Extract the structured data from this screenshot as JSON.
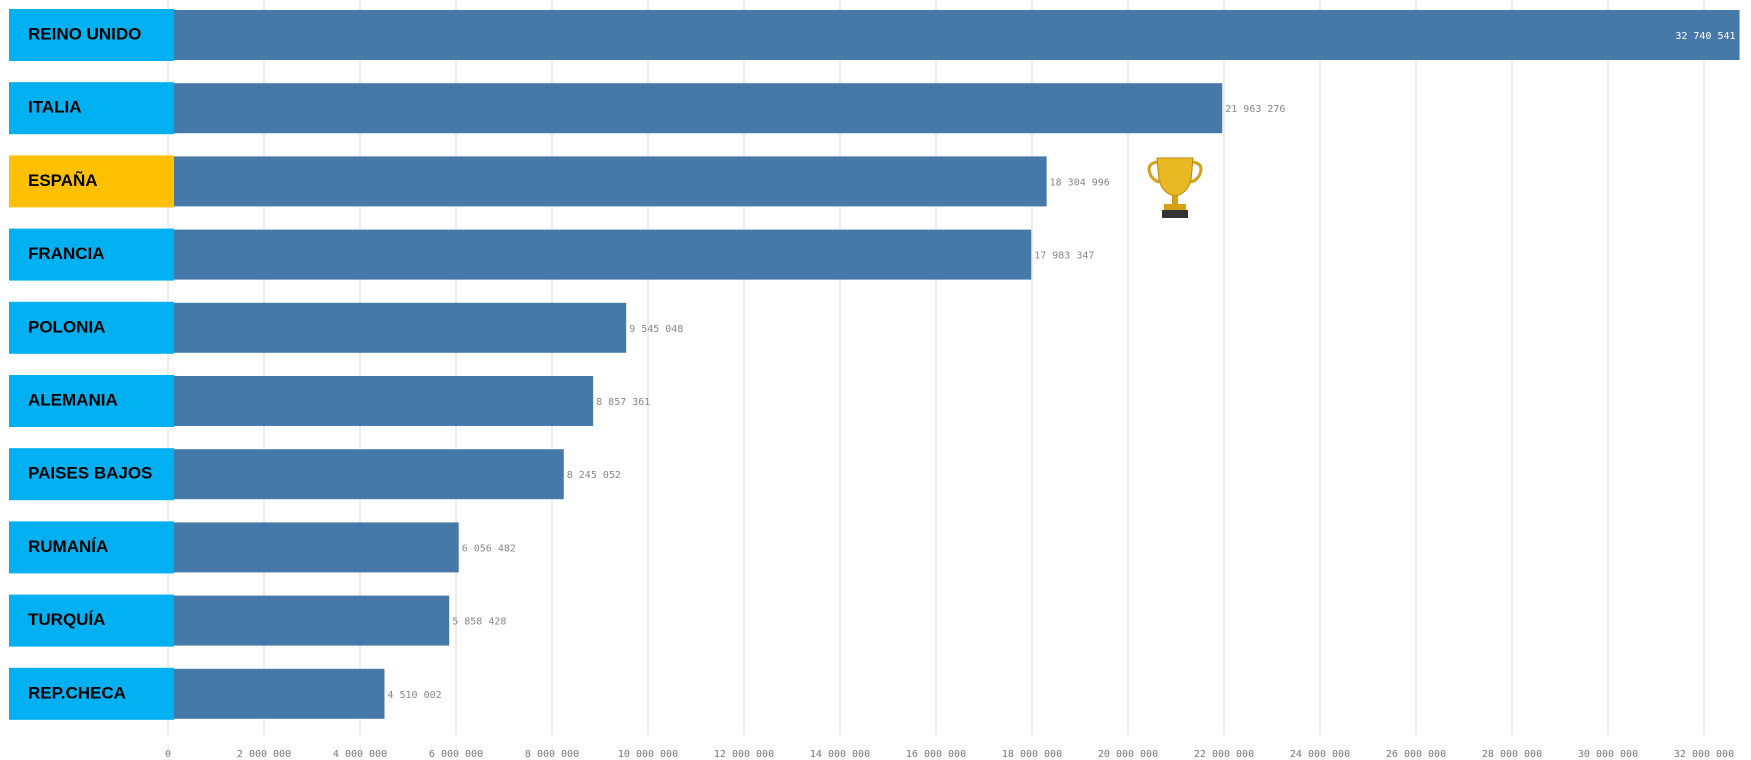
{
  "chart_data": {
    "type": "barh",
    "categories": [
      "REINO UNIDO",
      "ITALIA",
      "ESPAÑA",
      "FRANCIA",
      "POLONIA",
      "ALEMANIA",
      "PAISES BAJOS",
      "RUMANÍA",
      "TURQUÍA",
      "REP.CHECA"
    ],
    "values": [
      32740541,
      21963276,
      18304996,
      17983347,
      9545048,
      8857361,
      8245052,
      6056482,
      5858428,
      4510002
    ],
    "value_labels": [
      "32 740 541",
      "21 963 276",
      "18 304 996",
      "17 983 347",
      "9 545 048",
      "8 857 361",
      "8 245 052",
      "6 056 482",
      "5 858 428",
      "4 510 002"
    ],
    "color": "#4679a8",
    "label_colors": [
      "#00b0f0",
      "#00b0f0",
      "#ffc000",
      "#00b0f0",
      "#00b0f0",
      "#00b0f0",
      "#00b0f0",
      "#00b0f0",
      "#00b0f0",
      "#00b0f0"
    ],
    "xlim": [
      0,
      34000000
    ],
    "xticks": [
      0,
      {
        "value": 2000000,
        "label": "2 000 000"
      },
      {
        "value": 4000000,
        "label": "4 000 000"
      },
      {
        "value": 6000000,
        "label": "6 000 000"
      },
      {
        "value": 8000000,
        "label": "8 000 000"
      },
      {
        "value": 10000000,
        "label": "10 000 000"
      },
      {
        "value": 12000000,
        "label": "12 000 000"
      },
      {
        "value": 14000000,
        "label": "14 000 000"
      },
      {
        "value": 16000000,
        "label": "16 000 000"
      },
      {
        "value": 18000000,
        "label": "18 000 000"
      },
      {
        "value": 20000000,
        "label": "20 000 000"
      },
      {
        "value": 22000000,
        "label": "22 000 000"
      },
      {
        "value": 24000000,
        "label": "24 000 000"
      },
      {
        "value": 26000000,
        "label": "26 000 000"
      },
      {
        "value": 28000000,
        "label": "28 000 000"
      },
      {
        "value": 30000000,
        "label": "30 000 000"
      },
      {
        "value": 32000000,
        "label": "32 000 000"
      }
    ],
    "grid": true
  }
}
